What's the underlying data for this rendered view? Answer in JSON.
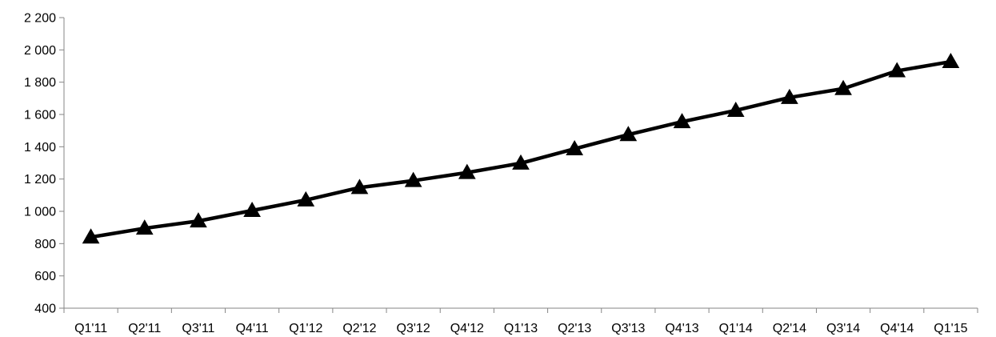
{
  "chart_data": {
    "type": "line",
    "title": "",
    "xlabel": "",
    "ylabel": "",
    "categories": [
      "Q1'11",
      "Q2'11",
      "Q3'11",
      "Q4'11",
      "Q1'12",
      "Q2'12",
      "Q3'12",
      "Q4'12",
      "Q1'13",
      "Q2'13",
      "Q3'13",
      "Q4'13",
      "Q1'14",
      "Q2'14",
      "Q3'14",
      "Q4'14",
      "Q1'15"
    ],
    "series": [
      {
        "values": [
          840,
          895,
          940,
          1005,
          1070,
          1147,
          1190,
          1240,
          1298,
          1387,
          1475,
          1555,
          1625,
          1705,
          1760,
          1870,
          1927
        ],
        "marker": "triangle",
        "color": "#000000"
      }
    ],
    "ylim": [
      400,
      2200
    ],
    "yticks": [
      400,
      600,
      800,
      1000,
      1200,
      1400,
      1600,
      1800,
      2000,
      2200
    ],
    "ytick_labels": [
      "400",
      "600",
      "800",
      "1 000",
      "1 200",
      "1 400",
      "1 600",
      "1 800",
      "2 000",
      "2 200"
    ],
    "grid": false,
    "legend": "none"
  }
}
